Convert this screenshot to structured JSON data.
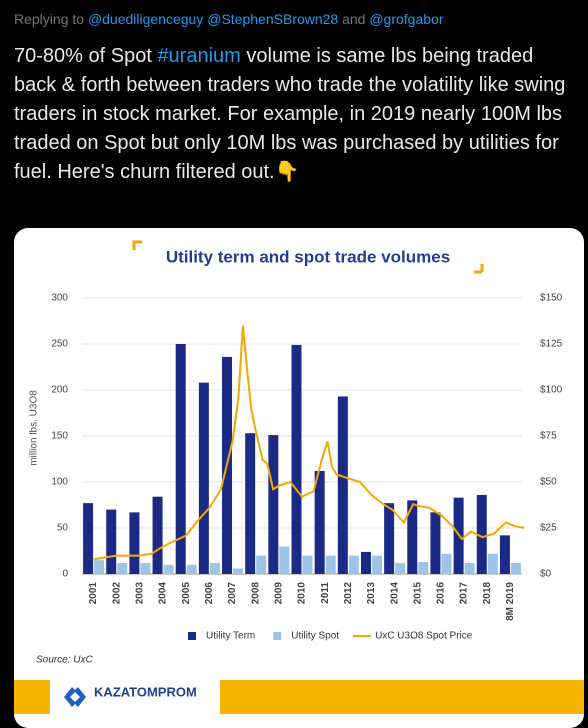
{
  "reply": {
    "label": "Replying to",
    "mentions": [
      "@duediligenceguy",
      "@StephenSBrown28",
      "@grofgabor"
    ],
    "conjunction": "and"
  },
  "tweet": {
    "text_before": "70-80% of Spot ",
    "hashtag": "#uranium",
    "text_after": " volume is same lbs being traded back & forth between traders who trade the volatility like swing traders in stock market. For example, in 2019 nearly 100M lbs traded on Spot but only 10M lbs was purchased by utilities for fuel. Here's churn filtered out.👇"
  },
  "chart_data": {
    "type": "bar",
    "title": "Utility term and spot trade volumes",
    "y_label": "million lbs. U3O8",
    "source": "Source: UxC",
    "logo": "KAZATOMPROM",
    "categories": [
      "2001",
      "2002",
      "2003",
      "2004",
      "2005",
      "2006",
      "2007",
      "2008",
      "2009",
      "2010",
      "2011",
      "2012",
      "2013",
      "2014",
      "2015",
      "2016",
      "2017",
      "2018",
      "8M 2019"
    ],
    "xlim": [
      2000.5,
      2019.5
    ],
    "ylim": [
      0,
      300
    ],
    "yticks": [
      0,
      50,
      100,
      150,
      200,
      250,
      300
    ],
    "y2lim": [
      0,
      150
    ],
    "y2ticks": [
      {
        "value": 0,
        "label": "$0"
      },
      {
        "value": 25,
        "label": "$25"
      },
      {
        "value": 50,
        "label": "$50"
      },
      {
        "value": 75,
        "label": "$75"
      },
      {
        "value": 100,
        "label": "$100"
      },
      {
        "value": 125,
        "label": "$125"
      },
      {
        "value": 150,
        "label": "$150"
      }
    ],
    "series": [
      {
        "name": "Utility Term",
        "color": "#1b2a84",
        "values": [
          77,
          70,
          67,
          84,
          250,
          208,
          236,
          153,
          151,
          249,
          112,
          193,
          24,
          77,
          80,
          67,
          83,
          86,
          42
        ]
      },
      {
        "name": "Utility Spot",
        "color": "#9dc3e6",
        "values": [
          15,
          12,
          12,
          10,
          10,
          12,
          6,
          20,
          30,
          20,
          20,
          20,
          20,
          12,
          13,
          22,
          12,
          22,
          12
        ]
      },
      {
        "name": "UxC U3O8 Spot Price",
        "color": "#f5a800",
        "axis": "y2",
        "type": "line",
        "x": [
          2001.0,
          2001.5,
          2002.0,
          2002.5,
          2003.0,
          2003.5,
          2004.0,
          2004.5,
          2005.0,
          2005.5,
          2006.0,
          2006.5,
          2007.0,
          2007.25,
          2007.45,
          2007.6,
          2007.8,
          2008.0,
          2008.3,
          2008.5,
          2008.75,
          2009.0,
          2009.5,
          2010.0,
          2010.5,
          2010.85,
          2011.1,
          2011.3,
          2011.5,
          2012.0,
          2012.5,
          2013.0,
          2013.5,
          2013.9,
          2014.4,
          2014.8,
          2015.0,
          2015.5,
          2016.0,
          2016.5,
          2016.9,
          2017.3,
          2017.8,
          2018.3,
          2018.8,
          2019.2,
          2019.6
        ],
        "values": [
          8,
          9,
          10,
          10,
          10,
          11,
          15,
          18,
          21,
          29,
          36,
          46,
          72,
          95,
          135,
          115,
          90,
          78,
          62,
          60,
          46,
          48,
          50,
          42,
          45,
          62,
          72,
          58,
          54,
          52,
          50,
          43,
          38,
          35,
          28,
          38,
          37,
          36,
          32,
          26,
          19,
          23,
          20,
          22,
          28,
          26,
          25
        ]
      }
    ]
  }
}
